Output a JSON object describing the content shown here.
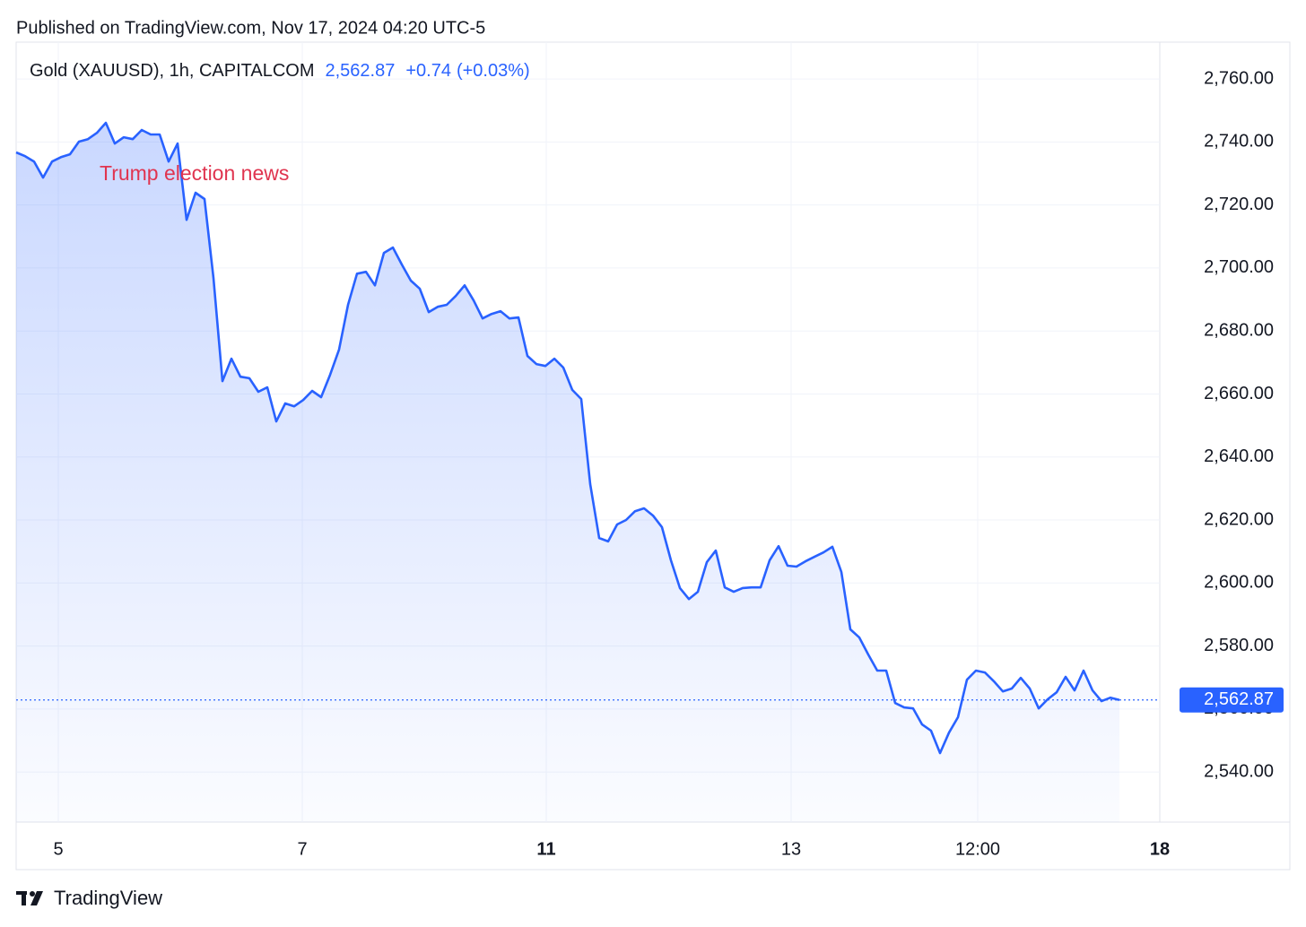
{
  "chart_data": {
    "type": "area",
    "published": "Published on TradingView.com, Nov 17, 2024 04:20 UTC-5",
    "title": "Gold (XAUUSD), 1h, CAPITALCOM",
    "last_label": "2,562.87",
    "change": "+0.74",
    "change_percent": "(+0.03%)",
    "annotation": "Trump election news",
    "brand": "TradingView",
    "series": [
      {
        "name": "XAUUSD",
        "color": "#2962ff",
        "values": [
          2736.7,
          2735.5,
          2733.8,
          2728.7,
          2733.8,
          2735.2,
          2736.1,
          2740.1,
          2740.9,
          2742.9,
          2746.1,
          2739.5,
          2741.5,
          2740.9,
          2743.8,
          2742.4,
          2742.4,
          2733.8,
          2739.5,
          2715.3,
          2723.9,
          2721.9,
          2696.8,
          2664.1,
          2671.2,
          2665.5,
          2665,
          2660.7,
          2662.1,
          2651.3,
          2657,
          2656.1,
          2658.1,
          2661,
          2659,
          2666.1,
          2674.1,
          2688.3,
          2698.2,
          2698.8,
          2694.5,
          2704.8,
          2706.5,
          2701.1,
          2696,
          2693.4,
          2686,
          2687.7,
          2688.3,
          2691.1,
          2694.5,
          2689.7,
          2684,
          2685.4,
          2686.3,
          2684,
          2684.3,
          2672.1,
          2669.5,
          2668.9,
          2671.2,
          2668.4,
          2661.3,
          2658.4,
          2631.4,
          2614.3,
          2613.2,
          2618.6,
          2620,
          2622.8,
          2623.7,
          2621.4,
          2617.7,
          2607.2,
          2598.4,
          2594.9,
          2597.2,
          2606.6,
          2610.3,
          2598.6,
          2597.2,
          2598.4,
          2598.6,
          2598.6,
          2607.2,
          2611.7,
          2605.5,
          2605.2,
          2606.9,
          2608.3,
          2609.7,
          2611.5,
          2603.5,
          2585.3,
          2582.7,
          2577.3,
          2572.2,
          2572.2,
          2561.9,
          2560.5,
          2560.2,
          2555.1,
          2553.1,
          2546,
          2552.5,
          2557.4,
          2569.3,
          2572.2,
          2571.6,
          2568.8,
          2565.6,
          2566.5,
          2569.9,
          2566.5,
          2560.2,
          2563.1,
          2565.3,
          2570.2,
          2565.9,
          2572.2,
          2565.9,
          2562.5,
          2563.6,
          2562.87
        ]
      }
    ],
    "xlim": [
      0,
      127.5
    ],
    "xticks": [
      {
        "value": 4.7,
        "label": "5"
      },
      {
        "value": 31.9,
        "label": "7"
      },
      {
        "value": 59.1,
        "label": "11"
      },
      {
        "value": 86.4,
        "label": "13"
      },
      {
        "value": 107.2,
        "label": "12:00"
      },
      {
        "value": 127.5,
        "label": "18"
      }
    ],
    "xtick_bold": [
      false,
      false,
      true,
      false,
      false,
      true
    ],
    "ylim": [
      2524.1,
      2771.7
    ],
    "yticks": [
      {
        "value": 2540,
        "label": "2,540.00"
      },
      {
        "value": 2560,
        "label": "2,560.00"
      },
      {
        "value": 2580,
        "label": "2,580.00"
      },
      {
        "value": 2600,
        "label": "2,600.00"
      },
      {
        "value": 2620,
        "label": "2,620.00"
      },
      {
        "value": 2640,
        "label": "2,640.00"
      },
      {
        "value": 2660,
        "label": "2,660.00"
      },
      {
        "value": 2680,
        "label": "2,680.00"
      },
      {
        "value": 2700,
        "label": "2,700.00"
      },
      {
        "value": 2720,
        "label": "2,720.00"
      },
      {
        "value": 2740,
        "label": "2,740.00"
      },
      {
        "value": 2760,
        "label": "2,760.00"
      }
    ],
    "grid": true
  }
}
